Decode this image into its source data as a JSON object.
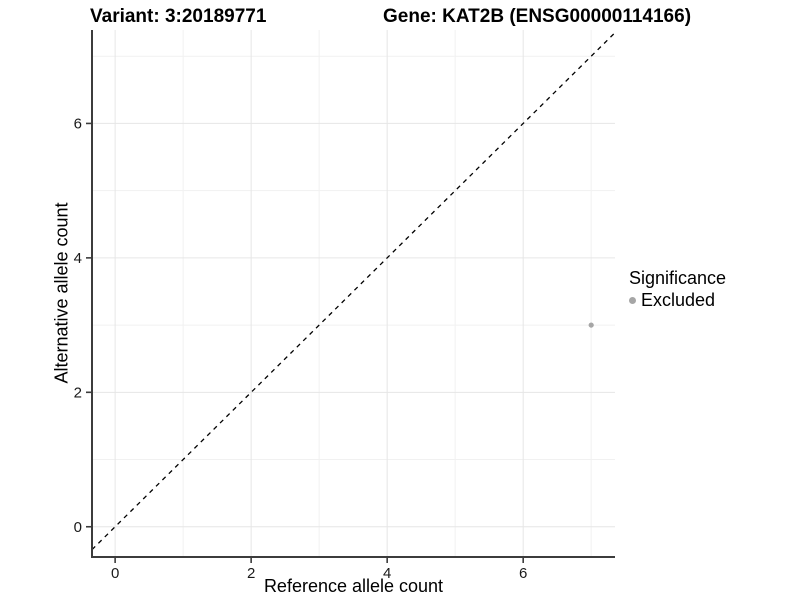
{
  "header": {
    "variant_title": "Variant: 3:20189771",
    "gene_title": "Gene: KAT2B (ENSG00000114166)"
  },
  "axes": {
    "x_label": "Reference allele count",
    "y_label": "Alternative allele count"
  },
  "legend": {
    "title": "Significance",
    "items": [
      {
        "label": "Excluded",
        "color": "#a6a6a6"
      }
    ]
  },
  "chart_data": {
    "type": "scatter",
    "title": "Variant: 3:20189771",
    "subtitle": "Gene: KAT2B (ENSG00000114166)",
    "xlabel": "Reference allele count",
    "ylabel": "Alternative allele count",
    "xlim": [
      -0.34,
      7.35
    ],
    "ylim": [
      -0.45,
      7.39
    ],
    "x_ticks": [
      0,
      2,
      4,
      6
    ],
    "y_ticks": [
      0,
      2,
      4,
      6
    ],
    "x_minor_ticks": [
      1,
      3,
      5,
      7
    ],
    "y_minor_ticks": [
      1,
      3,
      5,
      7
    ],
    "grid": "major+minor",
    "legend_position": "right",
    "reference_line": {
      "kind": "identity-diagonal",
      "style": "dashed",
      "color": "#000000"
    },
    "series": [
      {
        "name": "Excluded",
        "color": "#a6a6a6",
        "marker": "circle",
        "points": [
          {
            "x": 7,
            "y": 3
          }
        ]
      }
    ],
    "colors": {
      "axis_line": "#3c3c3c",
      "grid_major": "#e6e6e6",
      "grid_minor": "#f1f1f1",
      "tick_text": "#1a1a1a"
    }
  }
}
